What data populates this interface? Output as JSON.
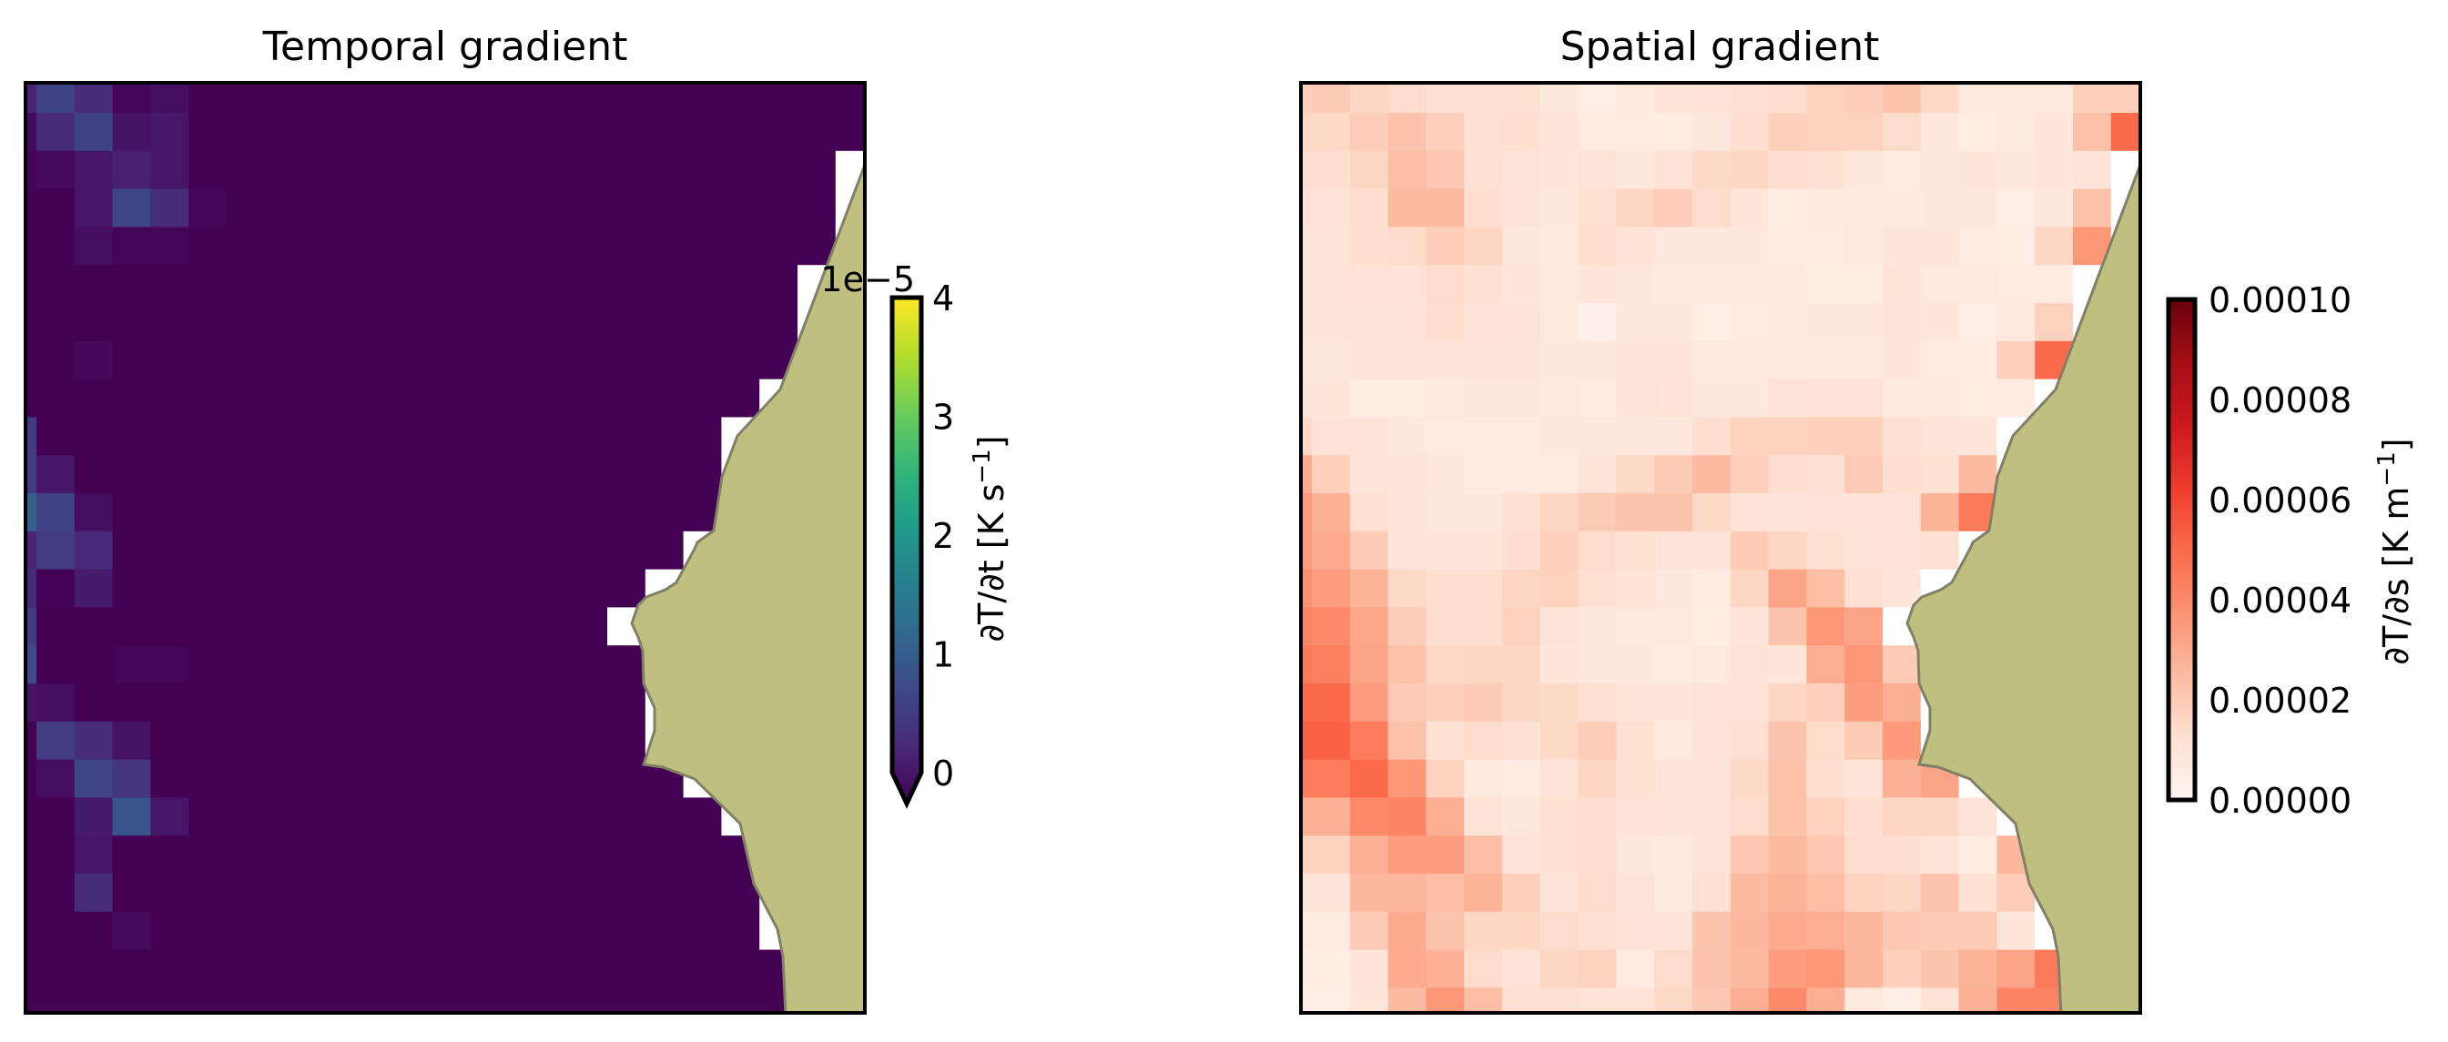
{
  "chart_data": [
    {
      "type": "heatmap",
      "title": "Temporal gradient",
      "colormap": "viridis",
      "units_multiplier_label": "1e−5",
      "colorbar": {
        "label_main": "∂T/∂t [K s",
        "label_sup": "−1",
        "label_end": "]",
        "ticks": [
          0,
          1,
          2,
          3,
          4
        ],
        "tick_labels": [
          "0",
          "1",
          "2",
          "3",
          "4"
        ],
        "range": [
          0,
          4
        ],
        "extend": "min"
      },
      "value_scale": 1e-05,
      "land_color": "#bfbf80",
      "missing_color": "#ffffff",
      "grid": [
        [
          0.4,
          0.8,
          0.5,
          0.05,
          0.15,
          0,
          0,
          0,
          0,
          0,
          0,
          0,
          0,
          0,
          0,
          0,
          0,
          0,
          0,
          0,
          0,
          0,
          0
        ],
        [
          0.1,
          0.5,
          0.8,
          0.2,
          0.25,
          0,
          0,
          0,
          0,
          0,
          0,
          0,
          0,
          0,
          0,
          0,
          0,
          0,
          0,
          0,
          0,
          0,
          0
        ],
        [
          0.05,
          0.1,
          0.25,
          0.35,
          0.25,
          0,
          0,
          0,
          0,
          0,
          0,
          0,
          0,
          0,
          0,
          0,
          0,
          0,
          0,
          0,
          0,
          0,
          null
        ],
        [
          0,
          0,
          0.25,
          0.85,
          0.5,
          0.07,
          0,
          0,
          0,
          0,
          0,
          0,
          0,
          0,
          0,
          0,
          0,
          0,
          0,
          0,
          0,
          0,
          null
        ],
        [
          0,
          0,
          0.15,
          0.05,
          0.05,
          0,
          0,
          0,
          0,
          0,
          0,
          0,
          0,
          0,
          0,
          0,
          0,
          0,
          0,
          0,
          0,
          0,
          null
        ],
        [
          0,
          0,
          0,
          0,
          0,
          0,
          0,
          0,
          0,
          0,
          0,
          0,
          0,
          0,
          0,
          0,
          0,
          0,
          0,
          0,
          0,
          null,
          null
        ],
        [
          0,
          0,
          0,
          0,
          0,
          0,
          0,
          0,
          0,
          0,
          0,
          0,
          0,
          0,
          0,
          0,
          0,
          0,
          0,
          0,
          0,
          null,
          null
        ],
        [
          0,
          0,
          0.08,
          0,
          0,
          0,
          0,
          0,
          0,
          0,
          0,
          0,
          0,
          0,
          0,
          0,
          0,
          0,
          0,
          0,
          0,
          null,
          null
        ],
        [
          0,
          0,
          0,
          0,
          0,
          0,
          0,
          0,
          0,
          0,
          0,
          0,
          0,
          0,
          0,
          0,
          0,
          0,
          0,
          0,
          null,
          null,
          null
        ],
        [
          0.7,
          0,
          0,
          0,
          0,
          0,
          0,
          0,
          0,
          0,
          0,
          0,
          0,
          0,
          0,
          0,
          0,
          0,
          0,
          null,
          null,
          null,
          null
        ],
        [
          0.7,
          0.25,
          0,
          0,
          0,
          0,
          0,
          0,
          0,
          0,
          0,
          0,
          0,
          0,
          0,
          0,
          0,
          0,
          0,
          null,
          null,
          null,
          null
        ],
        [
          1.2,
          0.8,
          0.15,
          0,
          0,
          0,
          0,
          0,
          0,
          0,
          0,
          0,
          0,
          0,
          0,
          0,
          0,
          0,
          0,
          null,
          null,
          null,
          null
        ],
        [
          0.4,
          0.7,
          0.45,
          0,
          0,
          0,
          0,
          0,
          0,
          0,
          0,
          0,
          0,
          0,
          0,
          0,
          0,
          0,
          null,
          null,
          null,
          null,
          null
        ],
        [
          0.5,
          0.02,
          0.3,
          0,
          0,
          0,
          0,
          0,
          0,
          0,
          0,
          0,
          0,
          0,
          0,
          0,
          0,
          null,
          null,
          null,
          null,
          null,
          null
        ],
        [
          0.7,
          0,
          0,
          0,
          0,
          0,
          0,
          0,
          0,
          0,
          0,
          0,
          0,
          0,
          0,
          0,
          null,
          null,
          null,
          null,
          null,
          null,
          null
        ],
        [
          0.9,
          0,
          0,
          0.05,
          0.05,
          0,
          0,
          0,
          0,
          0,
          0,
          0,
          0,
          0,
          0,
          0,
          0,
          null,
          null,
          null,
          null,
          null,
          null
        ],
        [
          0.2,
          0.15,
          0,
          0,
          0,
          0,
          0,
          0,
          0,
          0,
          0,
          0,
          0,
          0,
          0,
          0,
          0,
          null,
          null,
          null,
          null,
          null,
          null
        ],
        [
          0,
          0.7,
          0.5,
          0.2,
          0,
          0,
          0,
          0,
          0,
          0,
          0,
          0,
          0,
          0,
          0,
          0,
          0,
          null,
          null,
          null,
          null,
          null,
          null
        ],
        [
          0,
          0.15,
          0.85,
          0.6,
          0,
          0,
          0,
          0,
          0,
          0,
          0,
          0,
          0,
          0,
          0,
          0,
          0,
          0,
          null,
          null,
          null,
          null,
          null
        ],
        [
          0,
          0,
          0.3,
          1.05,
          0.25,
          0,
          0,
          0,
          0,
          0,
          0,
          0,
          0,
          0,
          0,
          0,
          0,
          0,
          0,
          null,
          null,
          null,
          null
        ],
        [
          0,
          0,
          0.25,
          0,
          0,
          0,
          0,
          0,
          0,
          0,
          0,
          0,
          0,
          0,
          0,
          0,
          0,
          0,
          0,
          0,
          null,
          null,
          null
        ],
        [
          0,
          0,
          0.5,
          0,
          0,
          0,
          0,
          0,
          0,
          0,
          0,
          0,
          0,
          0,
          0,
          0,
          0,
          0,
          0,
          0,
          null,
          null,
          null
        ],
        [
          0,
          0,
          0,
          0.1,
          0,
          0,
          0,
          0,
          0,
          0,
          0,
          0,
          0,
          0,
          0,
          0,
          0,
          0,
          0,
          0,
          null,
          null,
          null
        ],
        [
          0,
          0,
          0,
          0,
          0,
          0,
          0,
          0,
          0,
          0,
          0,
          0,
          0,
          0,
          0,
          0,
          0,
          0,
          0,
          0,
          0,
          null,
          null
        ],
        [
          0,
          0,
          0,
          0,
          0,
          0,
          0,
          0,
          0,
          0,
          0,
          0,
          0,
          0,
          0,
          0,
          0,
          0,
          0,
          0,
          0,
          null,
          null
        ]
      ]
    },
    {
      "type": "heatmap",
      "title": "Spatial gradient",
      "colormap": "Reds",
      "colorbar": {
        "label_main": "∂T/∂s [K m",
        "label_sup": "−1",
        "label_end": "]",
        "ticks": [
          0,
          2,
          4,
          6,
          8,
          10
        ],
        "tick_labels": [
          "0.00000",
          "0.00002",
          "0.00004",
          "0.00006",
          "0.00008",
          "0.00010"
        ],
        "range": [
          0,
          10
        ],
        "extend": "neither"
      },
      "value_scale": 1e-05,
      "land_color": "#bfbf80",
      "missing_color": "#ffffff",
      "grid": [
        [
          1.8,
          2.0,
          1.6,
          1.4,
          1.2,
          1.2,
          1.2,
          0.8,
          0.4,
          0.7,
          1.0,
          1.1,
          1.2,
          1.3,
          1.7,
          1.9,
          2.2,
          1.5,
          0.7,
          0.7,
          0.7,
          1.8,
          1.8
        ],
        [
          1.5,
          1.5,
          1.9,
          2.2,
          1.8,
          1.2,
          1.3,
          1.0,
          0.6,
          0.6,
          0.5,
          0.8,
          1.3,
          1.8,
          1.7,
          1.7,
          1.4,
          0.8,
          0.5,
          0.7,
          0.9,
          2.3,
          5.0
        ],
        [
          1.3,
          1.3,
          1.6,
          2.4,
          2.1,
          1.2,
          1.0,
          0.9,
          1.0,
          0.8,
          1.1,
          1.5,
          1.6,
          1.3,
          1.2,
          0.8,
          0.6,
          0.8,
          0.9,
          0.8,
          0.9,
          1.0,
          null
        ],
        [
          1.1,
          1.1,
          1.3,
          2.5,
          2.5,
          1.3,
          1.0,
          0.8,
          1.2,
          1.6,
          1.9,
          1.4,
          0.9,
          0.5,
          0.7,
          0.7,
          0.7,
          0.8,
          0.8,
          0.4,
          0.8,
          2.3,
          null
        ],
        [
          1.0,
          1.0,
          1.3,
          1.4,
          1.9,
          1.6,
          0.8,
          0.7,
          1.3,
          1.1,
          0.8,
          0.8,
          0.8,
          0.6,
          0.6,
          0.7,
          0.9,
          0.9,
          0.6,
          0.5,
          1.6,
          3.6,
          null
        ],
        [
          1.0,
          1.0,
          1.1,
          1.1,
          1.4,
          1.2,
          0.9,
          0.7,
          0.9,
          0.8,
          0.7,
          0.7,
          0.7,
          0.7,
          0.5,
          0.5,
          1.0,
          0.7,
          0.7,
          0.6,
          0.6,
          null,
          null
        ],
        [
          1.0,
          1.0,
          1.0,
          1.0,
          1.3,
          1.1,
          1.0,
          0.7,
          0.3,
          0.8,
          0.8,
          0.4,
          0.6,
          0.7,
          0.8,
          0.8,
          1.0,
          0.9,
          0.4,
          0.7,
          1.7,
          null,
          null
        ],
        [
          0.8,
          0.8,
          0.9,
          0.9,
          0.9,
          1.0,
          1.0,
          0.8,
          0.8,
          0.9,
          0.9,
          0.7,
          0.7,
          0.7,
          0.7,
          0.7,
          0.9,
          0.6,
          0.6,
          1.8,
          5.0,
          null,
          null
        ],
        [
          0.9,
          0.9,
          0.5,
          0.5,
          0.7,
          0.8,
          0.8,
          0.7,
          0.6,
          0.9,
          1.1,
          0.8,
          0.8,
          1.0,
          1.1,
          1.1,
          0.7,
          0.7,
          0.5,
          0.6,
          null,
          null,
          null
        ],
        [
          1.5,
          1.1,
          1.0,
          0.8,
          0.6,
          0.6,
          0.6,
          0.8,
          0.8,
          0.8,
          0.8,
          1.3,
          1.7,
          1.7,
          1.8,
          1.8,
          1.2,
          1.0,
          0.9,
          null,
          null,
          null,
          null
        ],
        [
          3.0,
          1.8,
          1.0,
          1.0,
          0.8,
          0.6,
          0.6,
          0.6,
          1.0,
          1.5,
          2.0,
          2.5,
          1.8,
          1.3,
          1.2,
          2.0,
          1.3,
          1.2,
          2.5,
          null,
          null,
          null,
          null
        ],
        [
          3.5,
          2.8,
          1.2,
          0.9,
          0.8,
          0.8,
          1.2,
          1.6,
          2.0,
          2.2,
          2.2,
          1.5,
          1.1,
          0.9,
          1.1,
          1.1,
          1.1,
          2.7,
          4.5,
          null,
          null,
          null,
          null
        ],
        [
          3.5,
          3.0,
          2.0,
          0.9,
          0.9,
          0.9,
          1.3,
          1.8,
          1.4,
          1.2,
          1.0,
          1.0,
          2.0,
          1.6,
          1.2,
          1.0,
          1.1,
          1.2,
          null,
          null,
          null,
          null,
          null
        ],
        [
          3.8,
          3.4,
          2.7,
          1.5,
          1.3,
          1.3,
          1.6,
          1.7,
          1.2,
          1.1,
          0.8,
          0.6,
          1.6,
          3.2,
          2.4,
          1.2,
          0.9,
          null,
          null,
          null,
          null,
          null,
          null
        ],
        [
          4.2,
          4.0,
          3.1,
          1.9,
          1.3,
          1.3,
          1.7,
          1.0,
          0.8,
          0.7,
          0.7,
          0.5,
          0.9,
          2.2,
          3.6,
          3.2,
          null,
          null,
          null,
          null,
          null,
          null,
          null
        ],
        [
          4.5,
          4.3,
          3.2,
          2.3,
          1.5,
          1.6,
          1.6,
          0.9,
          0.8,
          0.8,
          0.6,
          0.7,
          1.0,
          0.9,
          2.9,
          3.6,
          2.0,
          null,
          null,
          null,
          null,
          null,
          null
        ],
        [
          5.0,
          5.0,
          3.4,
          2.0,
          1.8,
          2.0,
          1.6,
          1.5,
          1.2,
          0.9,
          0.9,
          1.0,
          1.1,
          1.6,
          1.8,
          3.4,
          2.9,
          null,
          null,
          null,
          null,
          null,
          null
        ],
        [
          5.2,
          5.2,
          4.4,
          2.3,
          1.2,
          1.4,
          1.2,
          1.5,
          1.9,
          1.2,
          0.7,
          1.1,
          1.2,
          2.2,
          1.4,
          2.0,
          3.5,
          null,
          null,
          null,
          null,
          null,
          null
        ],
        [
          4.4,
          4.4,
          5.0,
          3.6,
          1.7,
          0.7,
          0.6,
          1.0,
          1.6,
          1.2,
          1.0,
          1.0,
          1.5,
          2.3,
          1.3,
          1.0,
          2.8,
          3.2,
          null,
          null,
          null,
          null,
          null
        ],
        [
          2.8,
          2.8,
          4.0,
          4.2,
          2.9,
          1.1,
          0.8,
          1.2,
          1.3,
          1.1,
          1.0,
          1.0,
          1.4,
          2.3,
          1.7,
          1.3,
          1.6,
          1.6,
          1.0,
          null,
          null,
          null,
          null
        ],
        [
          1.7,
          1.7,
          2.8,
          3.4,
          3.4,
          2.4,
          1.0,
          1.2,
          1.3,
          0.8,
          0.7,
          1.0,
          2.1,
          2.5,
          2.1,
          1.4,
          1.3,
          1.0,
          0.6,
          2.6,
          null,
          null,
          null
        ],
        [
          1.0,
          1.0,
          2.6,
          2.6,
          2.4,
          2.7,
          1.8,
          1.0,
          1.4,
          1.0,
          0.7,
          1.2,
          2.5,
          2.7,
          2.4,
          1.7,
          1.6,
          2.2,
          1.2,
          1.9,
          null,
          null,
          null
        ],
        [
          0.6,
          0.6,
          2.0,
          3.0,
          2.2,
          1.6,
          1.6,
          1.4,
          1.2,
          1.1,
          1.0,
          2.2,
          2.6,
          3.0,
          2.9,
          2.6,
          2.1,
          2.0,
          2.0,
          0.9,
          null,
          null,
          null
        ],
        [
          0.5,
          0.5,
          1.1,
          3.0,
          2.8,
          1.4,
          1.1,
          1.6,
          1.7,
          0.6,
          1.4,
          2.2,
          2.5,
          3.4,
          3.6,
          2.6,
          1.8,
          2.2,
          2.7,
          3.2,
          4.5,
          null,
          null
        ],
        [
          0.4,
          0.4,
          0.9,
          2.5,
          3.6,
          2.4,
          1.2,
          1.2,
          1.1,
          1.0,
          1.5,
          2.1,
          2.9,
          4.0,
          2.9,
          0.7,
          0.4,
          1.1,
          2.8,
          4.2,
          4.2,
          null,
          null
        ]
      ]
    }
  ]
}
